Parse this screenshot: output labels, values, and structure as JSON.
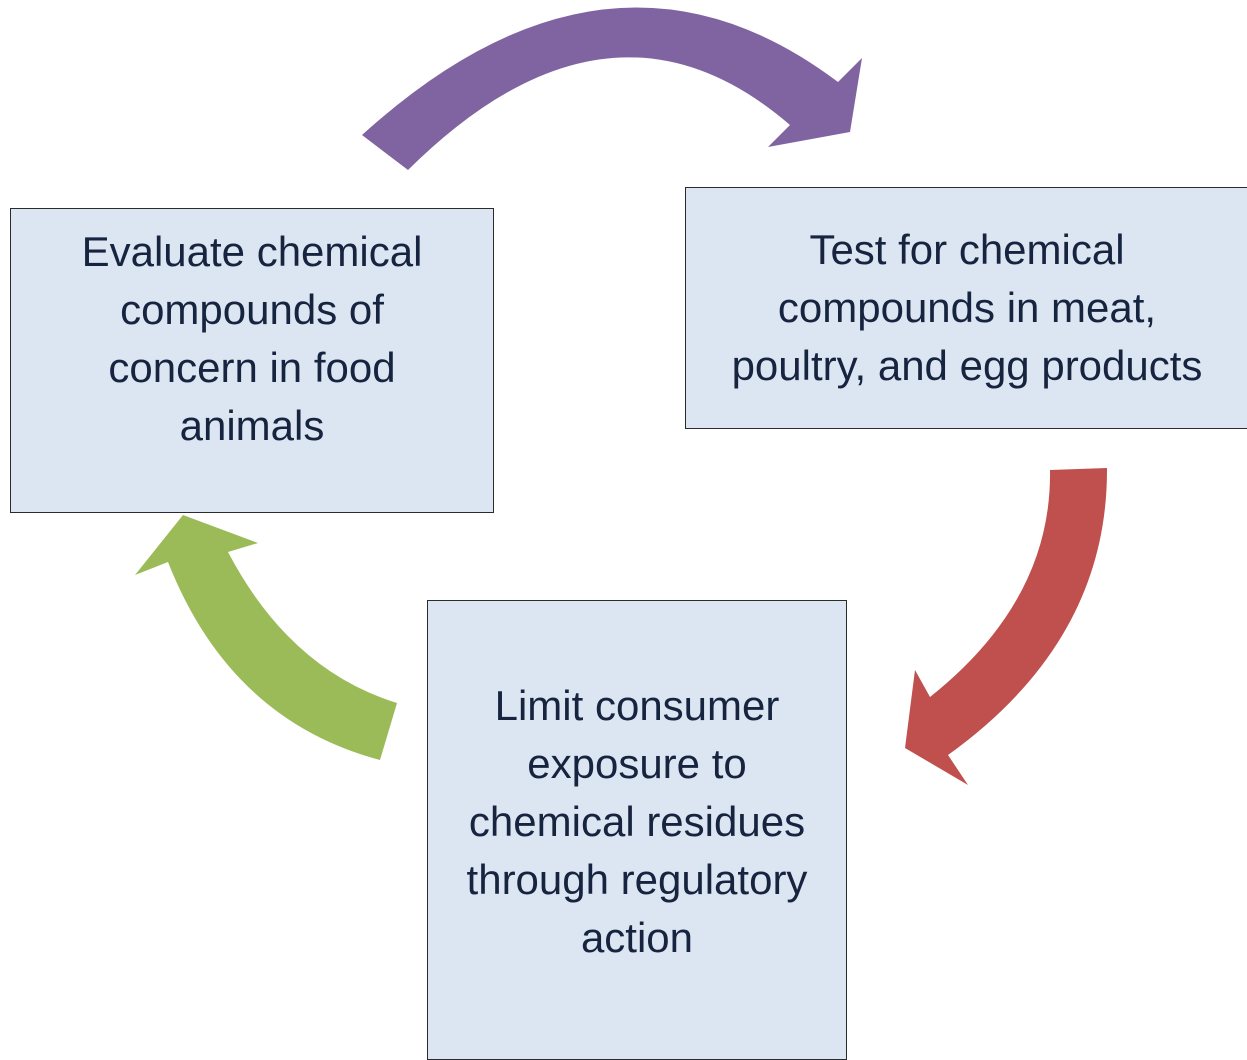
{
  "nodes": [
    {
      "lines": [
        "Evaluate chemical",
        "compounds of",
        "concern in food",
        "animals"
      ]
    },
    {
      "lines": [
        "Test for chemical",
        "compounds in meat,",
        "poultry, and egg products"
      ]
    },
    {
      "lines": [
        "Limit consumer",
        "exposure to",
        "chemical residues",
        "through regulatory",
        "action"
      ]
    }
  ]
}
